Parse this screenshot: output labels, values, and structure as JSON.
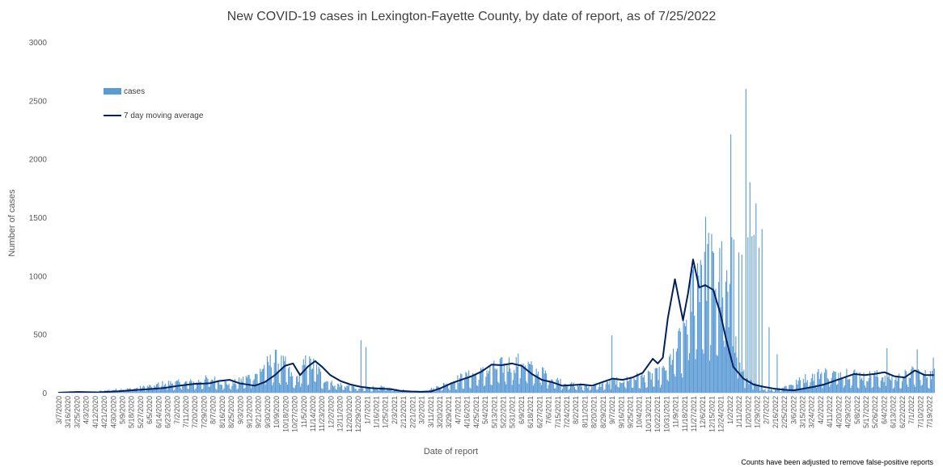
{
  "chart_data": {
    "type": "bar",
    "title": "New COVID-19 cases in Lexington-Fayette County, by date of report, as of 7/25/2022",
    "xlabel": "Date of report",
    "ylabel": "Number of cases",
    "ylim": [
      0,
      3000
    ],
    "yticks": [
      0,
      500,
      1000,
      1500,
      2000,
      2500,
      3000
    ],
    "grid": false,
    "legend_position": "top-left",
    "footnote": "Counts have been adjusted to remove false-positive reports",
    "start_date": "3/7/2020",
    "end_date": "7/24/2022",
    "x_tick_labels": [
      "3/7/2020",
      "3/16/2020",
      "3/25/2020",
      "4/3/2020",
      "4/12/2020",
      "4/21/2020",
      "4/30/2020",
      "5/9/2020",
      "5/18/2020",
      "5/27/2020",
      "6/5/2020",
      "6/14/2020",
      "6/23/2020",
      "7/2/2020",
      "7/11/2020",
      "7/20/2020",
      "7/29/2020",
      "8/7/2020",
      "8/16/2020",
      "8/25/2020",
      "9/3/2020",
      "9/12/2020",
      "9/21/2020",
      "9/30/2020",
      "10/9/2020",
      "10/18/2020",
      "10/27/2020",
      "11/5/2020",
      "11/14/2020",
      "11/23/2020",
      "12/2/2020",
      "12/11/2020",
      "12/20/2020",
      "12/29/2020",
      "1/7/2021",
      "1/16/2021",
      "1/25/2021",
      "2/3/2021",
      "2/12/2021",
      "2/21/2021",
      "3/2/2021",
      "3/11/2021",
      "3/20/2021",
      "3/29/2021",
      "4/7/2021",
      "4/16/2021",
      "4/25/2021",
      "5/4/2021",
      "5/13/2021",
      "5/22/2021",
      "5/31/2021",
      "6/9/2021",
      "6/18/2021",
      "6/27/2021",
      "7/6/2021",
      "7/15/2021",
      "7/24/2021",
      "8/2/2021",
      "8/11/2021",
      "8/20/2021",
      "8/29/2021",
      "9/7/2021",
      "9/16/2021",
      "9/25/2021",
      "10/4/2021",
      "10/13/2021",
      "10/22/2021",
      "10/31/2021",
      "11/9/2021",
      "11/18/2021",
      "11/27/2021",
      "12/6/2021",
      "12/15/2021",
      "12/24/2021",
      "1/2/2022",
      "1/11/2022",
      "1/20/2022",
      "1/29/2022",
      "2/7/2022",
      "2/16/2022",
      "2/25/2022",
      "3/6/2022",
      "3/15/2022",
      "3/24/2022",
      "4/2/2022",
      "4/11/2022",
      "4/20/2022",
      "4/29/2022",
      "5/8/2022",
      "5/17/2022",
      "5/26/2022",
      "6/4/2022",
      "6/13/2022",
      "6/22/2022",
      "7/1/2022",
      "7/10/2022",
      "7/19/2022"
    ],
    "series": [
      {
        "name": "cases",
        "type": "bar",
        "color": "#5B9BD5",
        "anchor_days": [
          0,
          12,
          30,
          45,
          60,
          75,
          90,
          105,
          120,
          135,
          150,
          160,
          170,
          180,
          195,
          205,
          215,
          225,
          235,
          245,
          255,
          262,
          270,
          285,
          295,
          300,
          310,
          320,
          330,
          340,
          350,
          360,
          380,
          400,
          420,
          440,
          460,
          470,
          480,
          485,
          490,
          500,
          510,
          520,
          530,
          540,
          550,
          560,
          570,
          580,
          590,
          600,
          610,
          620,
          630,
          640,
          650,
          660,
          665,
          668,
          670,
          672,
          675,
          680,
          685,
          690,
          695,
          700,
          705,
          710,
          715,
          720,
          725,
          730,
          735,
          740,
          750,
          760,
          770,
          780,
          790,
          800,
          810,
          820,
          830,
          840,
          850,
          860,
          869
        ],
        "anchor_values": [
          2,
          10,
          3,
          18,
          28,
          35,
          55,
          80,
          85,
          90,
          120,
          95,
          75,
          100,
          160,
          230,
          280,
          230,
          90,
          250,
          230,
          120,
          80,
          60,
          40,
          35,
          45,
          45,
          35,
          25,
          10,
          10,
          60,
          130,
          170,
          230,
          270,
          200,
          180,
          150,
          120,
          90,
          70,
          60,
          60,
          70,
          100,
          110,
          130,
          130,
          150,
          180,
          330,
          500,
          920,
          1200,
          1000,
          1000,
          800,
          600,
          520,
          400,
          250,
          150,
          110,
          70,
          45,
          35,
          25,
          25,
          35,
          50,
          60,
          80,
          100,
          120,
          150,
          170,
          160,
          180,
          160,
          140,
          150,
          130,
          120,
          150,
          180,
          150,
          160
        ],
        "spikes": [
          {
            "day": 300,
            "value": 450
          },
          {
            "day": 305,
            "value": 390
          },
          {
            "day": 549,
            "value": 490
          },
          {
            "day": 665,
            "value": 560
          },
          {
            "day": 667,
            "value": 2210
          },
          {
            "day": 668,
            "value": 1330
          },
          {
            "day": 670,
            "value": 1310
          },
          {
            "day": 675,
            "value": 1200
          },
          {
            "day": 678,
            "value": 1180
          },
          {
            "day": 682,
            "value": 2600
          },
          {
            "day": 684,
            "value": 1330
          },
          {
            "day": 686,
            "value": 1800
          },
          {
            "day": 688,
            "value": 1340
          },
          {
            "day": 690,
            "value": 1350
          },
          {
            "day": 692,
            "value": 1620
          },
          {
            "day": 695,
            "value": 1240
          },
          {
            "day": 698,
            "value": 1400
          },
          {
            "day": 705,
            "value": 560
          },
          {
            "day": 713,
            "value": 330
          },
          {
            "day": 822,
            "value": 380
          },
          {
            "day": 852,
            "value": 370
          },
          {
            "day": 868,
            "value": 300
          }
        ]
      },
      {
        "name": "7 day moving average",
        "type": "line",
        "color": "#002060",
        "points": [
          [
            0,
            0
          ],
          [
            20,
            6
          ],
          [
            40,
            3
          ],
          [
            60,
            12
          ],
          [
            75,
            22
          ],
          [
            90,
            30
          ],
          [
            105,
            40
          ],
          [
            120,
            60
          ],
          [
            135,
            75
          ],
          [
            150,
            80
          ],
          [
            160,
            100
          ],
          [
            170,
            110
          ],
          [
            180,
            80
          ],
          [
            195,
            60
          ],
          [
            205,
            90
          ],
          [
            215,
            150
          ],
          [
            225,
            230
          ],
          [
            233,
            250
          ],
          [
            240,
            150
          ],
          [
            248,
            225
          ],
          [
            255,
            270
          ],
          [
            262,
            220
          ],
          [
            270,
            150
          ],
          [
            280,
            100
          ],
          [
            290,
            70
          ],
          [
            300,
            50
          ],
          [
            310,
            40
          ],
          [
            320,
            35
          ],
          [
            330,
            30
          ],
          [
            340,
            15
          ],
          [
            350,
            10
          ],
          [
            360,
            8
          ],
          [
            370,
            10
          ],
          [
            380,
            40
          ],
          [
            390,
            80
          ],
          [
            400,
            110
          ],
          [
            410,
            140
          ],
          [
            420,
            180
          ],
          [
            430,
            240
          ],
          [
            440,
            235
          ],
          [
            450,
            250
          ],
          [
            460,
            230
          ],
          [
            470,
            160
          ],
          [
            480,
            110
          ],
          [
            490,
            90
          ],
          [
            500,
            60
          ],
          [
            510,
            65
          ],
          [
            520,
            70
          ],
          [
            530,
            60
          ],
          [
            540,
            90
          ],
          [
            550,
            120
          ],
          [
            560,
            110
          ],
          [
            570,
            130
          ],
          [
            580,
            170
          ],
          [
            590,
            290
          ],
          [
            595,
            250
          ],
          [
            600,
            300
          ],
          [
            605,
            640
          ],
          [
            612,
            970
          ],
          [
            620,
            620
          ],
          [
            625,
            850
          ],
          [
            630,
            1140
          ],
          [
            636,
            900
          ],
          [
            642,
            920
          ],
          [
            650,
            880
          ],
          [
            657,
            680
          ],
          [
            663,
            450
          ],
          [
            670,
            220
          ],
          [
            680,
            120
          ],
          [
            690,
            70
          ],
          [
            700,
            50
          ],
          [
            710,
            35
          ],
          [
            720,
            25
          ],
          [
            730,
            20
          ],
          [
            740,
            35
          ],
          [
            750,
            50
          ],
          [
            760,
            70
          ],
          [
            770,
            100
          ],
          [
            780,
            130
          ],
          [
            790,
            160
          ],
          [
            800,
            150
          ],
          [
            810,
            160
          ],
          [
            820,
            175
          ],
          [
            830,
            140
          ],
          [
            840,
            130
          ],
          [
            850,
            190
          ],
          [
            860,
            150
          ],
          [
            869,
            150
          ]
        ]
      }
    ]
  }
}
